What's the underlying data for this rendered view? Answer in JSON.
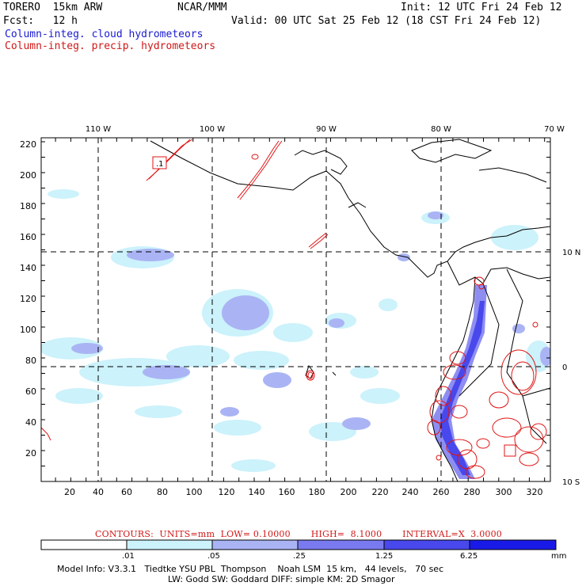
{
  "header": {
    "model": "TORERO  15km ARW",
    "center": "NCAR/MMM",
    "init": "Init: 12 UTC Fri 24 Feb 12",
    "fcst": "Fcst:   12 h",
    "valid": "Valid: 00 UTC Sat 25 Feb 12 (18 CST Fri 24 Feb 12)",
    "legend_cloud": "Column-integ. cloud hydrometeors",
    "legend_precip": "Column-integ. precip. hydrometeors"
  },
  "map": {
    "lon_labels": [
      "110 W",
      "100 W",
      "90 W",
      "80 W",
      "70 W"
    ],
    "lat_labels": [
      "10 N",
      "0",
      "10 S"
    ],
    "x_ticks": [
      "20",
      "40",
      "60",
      "80",
      "100",
      "120",
      "140",
      "160",
      "180",
      "200",
      "220",
      "240",
      "260",
      "280",
      "300",
      "320"
    ],
    "y_ticks": [
      "220",
      "200",
      "180",
      "160",
      "140",
      "120",
      "100",
      "80",
      "60",
      "40",
      "20"
    ],
    "box_labels": [
      ".1"
    ]
  },
  "contours_line": "CONTOURS:  UNITS=mm  LOW= 0.10000       HIGH=  8.1000       INTERVAL=X  3.0000",
  "colorbar": {
    "levels": [
      ".01",
      ".05",
      ".25",
      "1.25",
      "6.25"
    ],
    "unit": "mm",
    "colors": [
      "#ffffff",
      "#ccf2fb",
      "#aab4f4",
      "#7a7af0",
      "#4848ec",
      "#1a1ae8"
    ]
  },
  "footer": {
    "line1": "Model Info: V3.3.1   Tiedtke YSU PBL  Thompson    Noah LSM  15 km,   44 levels,   70 sec",
    "line2": "LW: Godd SW: Goddard DIFF: simple KM: 2D Smagor"
  }
}
